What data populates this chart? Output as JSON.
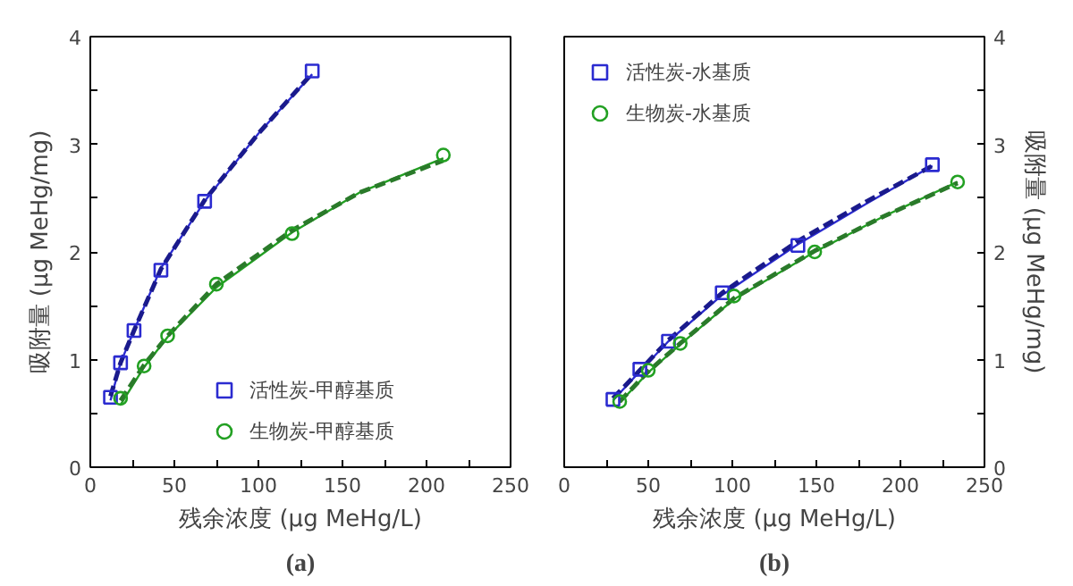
{
  "chart_data": [
    {
      "type": "scatter",
      "xlabel": "残余浓度 (μg MeHg/L)",
      "ylabel": "吸附量 (μg MeHg/mg)",
      "annotations": [
        "(a)"
      ],
      "xlim": [
        0,
        250
      ],
      "ylim": [
        0,
        4
      ],
      "xticks": [
        0,
        {
          "value": 25,
          "label": null
        },
        50,
        {
          "value": 75,
          "label": null
        },
        100,
        {
          "value": 125,
          "label": null
        },
        150,
        {
          "value": 175,
          "label": null
        },
        200,
        {
          "value": 225,
          "label": null
        },
        250
      ],
      "yticks": [
        0,
        {
          "value": 0.5,
          "label": null
        },
        1,
        {
          "value": 1.5,
          "label": null
        },
        2,
        {
          "value": 2.5,
          "label": null
        },
        3,
        {
          "value": 3.5,
          "label": null
        },
        4
      ],
      "grid": false,
      "legend": "bottom",
      "series": [
        {
          "type": "line",
          "color": "#2b2bd0",
          "line_style": "solid",
          "x": [
            12,
            18,
            26,
            42,
            68,
            100,
            132
          ],
          "values": [
            0.62,
            0.97,
            1.27,
            1.85,
            2.47,
            3.1,
            3.65
          ]
        },
        {
          "type": "line",
          "color": "#1a1a8c",
          "line_style": "dashed",
          "x": [
            12,
            18,
            26,
            42,
            68,
            100,
            132
          ],
          "values": [
            0.66,
            0.97,
            1.27,
            1.84,
            2.48,
            3.1,
            3.66
          ]
        },
        {
          "type": "line",
          "color": "#22a022",
          "line_style": "solid",
          "x": [
            18,
            32,
            46,
            75,
            120,
            160,
            210
          ],
          "values": [
            0.58,
            0.93,
            1.21,
            1.67,
            2.18,
            2.55,
            2.87
          ]
        },
        {
          "type": "line",
          "color": "#2a7a2a",
          "line_style": "dashed",
          "x": [
            18,
            32,
            46,
            75,
            120,
            160,
            210
          ],
          "values": [
            0.62,
            0.95,
            1.22,
            1.7,
            2.2,
            2.55,
            2.85
          ]
        },
        {
          "name": "活性炭-甲醇基质",
          "color": "#2b2bd0",
          "marker": "square",
          "x": [
            12,
            18,
            26,
            42,
            68,
            132
          ],
          "values": [
            0.65,
            0.97,
            1.27,
            1.83,
            2.47,
            3.68
          ]
        },
        {
          "name": "生物炭-甲醇基质",
          "color": "#22a022",
          "marker": "circle",
          "x": [
            18,
            32,
            46,
            75,
            120,
            210
          ],
          "values": [
            0.64,
            0.94,
            1.22,
            1.7,
            2.17,
            2.9
          ]
        }
      ]
    },
    {
      "type": "scatter",
      "xlabel": "残余浓度 (μg MeHg/L)",
      "y2label": "吸附量 (μg MeHg/mg)",
      "annotations": [
        "(b)"
      ],
      "xlim": [
        0,
        250
      ],
      "y2lim": [
        0,
        4
      ],
      "xticks": [
        0,
        {
          "value": 25,
          "label": null
        },
        50,
        {
          "value": 75,
          "label": null
        },
        100,
        {
          "value": 125,
          "label": null
        },
        150,
        {
          "value": 175,
          "label": null
        },
        200,
        {
          "value": 225,
          "label": null
        },
        250
      ],
      "y2ticks": [
        0,
        {
          "value": 0.5,
          "label": null
        },
        1,
        {
          "value": 1.5,
          "label": null
        },
        2,
        {
          "value": 2.5,
          "label": null
        },
        3,
        {
          "value": 3.5,
          "label": null
        },
        4
      ],
      "grid": false,
      "legend": "top left",
      "series": [
        {
          "type": "line",
          "axis": "y2",
          "color": "#2b2bd0",
          "line_style": "solid",
          "x": [
            29,
            45,
            62,
            94,
            139,
            180,
            219
          ],
          "values": [
            0.62,
            0.89,
            1.17,
            1.6,
            2.07,
            2.45,
            2.8
          ]
        },
        {
          "type": "line",
          "axis": "y2",
          "color": "#1a1a8c",
          "line_style": "dashed",
          "x": [
            29,
            45,
            62,
            94,
            139,
            180,
            219
          ],
          "values": [
            0.64,
            0.9,
            1.18,
            1.62,
            2.1,
            2.47,
            2.8
          ]
        },
        {
          "type": "line",
          "axis": "y2",
          "color": "#22a022",
          "line_style": "solid",
          "x": [
            33,
            50,
            69,
            101,
            149,
            190,
            234
          ],
          "values": [
            0.6,
            0.88,
            1.14,
            1.56,
            2.0,
            2.33,
            2.65
          ]
        },
        {
          "type": "line",
          "axis": "y2",
          "color": "#2a7a2a",
          "line_style": "dashed",
          "x": [
            33,
            50,
            69,
            101,
            149,
            190,
            234
          ],
          "values": [
            0.61,
            0.89,
            1.15,
            1.57,
            2.01,
            2.33,
            2.64
          ]
        },
        {
          "name": "活性炭-水基质",
          "axis": "y2",
          "color": "#2b2bd0",
          "marker": "square",
          "x": [
            29,
            45,
            62,
            94,
            139,
            219
          ],
          "values": [
            0.63,
            0.91,
            1.17,
            1.62,
            2.06,
            2.81
          ]
        },
        {
          "name": "生物炭-水基质",
          "axis": "y2",
          "color": "#22a022",
          "marker": "circle",
          "x": [
            33,
            50,
            69,
            101,
            149,
            234
          ],
          "values": [
            0.61,
            0.9,
            1.15,
            1.59,
            2.0,
            2.65
          ]
        }
      ]
    }
  ]
}
